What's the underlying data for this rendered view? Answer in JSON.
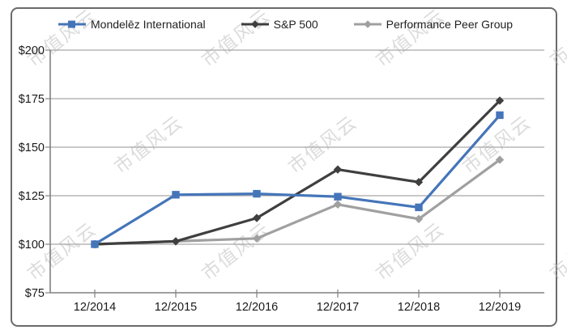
{
  "watermark": {
    "text": "市值风云",
    "color": "#b9b9b9"
  },
  "chart_data": {
    "type": "line",
    "x": [
      "12/2014",
      "12/2015",
      "12/2016",
      "12/2017",
      "12/2018",
      "12/2019"
    ],
    "series": [
      {
        "name": "Mondelēz International",
        "color": "#4575B9",
        "marker": "square",
        "values": [
          100,
          125.5,
          126,
          124.5,
          119,
          166.5
        ]
      },
      {
        "name": "S&P 500",
        "color": "#3F3F3F",
        "marker": "diamond",
        "values": [
          100,
          101.5,
          113.5,
          138.5,
          132,
          174
        ]
      },
      {
        "name": "Performance Peer Group",
        "color": "#A0A0A0",
        "marker": "diamond",
        "values": [
          100,
          101.5,
          103,
          120.5,
          113,
          143.5
        ]
      }
    ],
    "y_ticks": [
      {
        "label": "$200",
        "value": 200
      },
      {
        "label": "$175",
        "value": 175
      },
      {
        "label": "$150",
        "value": 150
      },
      {
        "label": "$125",
        "value": 125
      },
      {
        "label": "$100",
        "value": 100
      },
      {
        "label": "$75",
        "value": 75
      }
    ],
    "ylim": [
      75,
      200
    ],
    "title": "",
    "xlabel": "",
    "ylabel": "",
    "grid": true,
    "legend_position": "top",
    "grid_color": "#A6A6A6",
    "axis_color": "#808080",
    "label_color": "#1a1a1a"
  }
}
